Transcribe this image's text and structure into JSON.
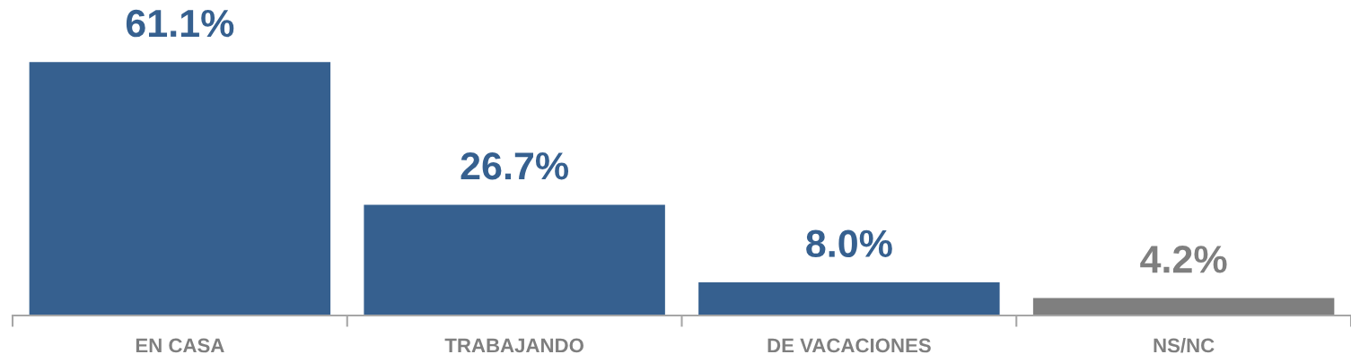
{
  "chart_data": {
    "type": "bar",
    "categories": [
      "EN CASA",
      "TRABAJANDO",
      "DE VACACIONES",
      "NS/NC"
    ],
    "values": [
      61.1,
      26.7,
      8.0,
      4.2
    ],
    "colors": [
      "#36608f",
      "#36608f",
      "#36608f",
      "#7f7f7f"
    ],
    "value_labels": [
      "61.1%",
      "26.7%",
      "8.0%",
      "4.2%"
    ],
    "tick_labels": "x",
    "grid": false,
    "legend": false
  }
}
